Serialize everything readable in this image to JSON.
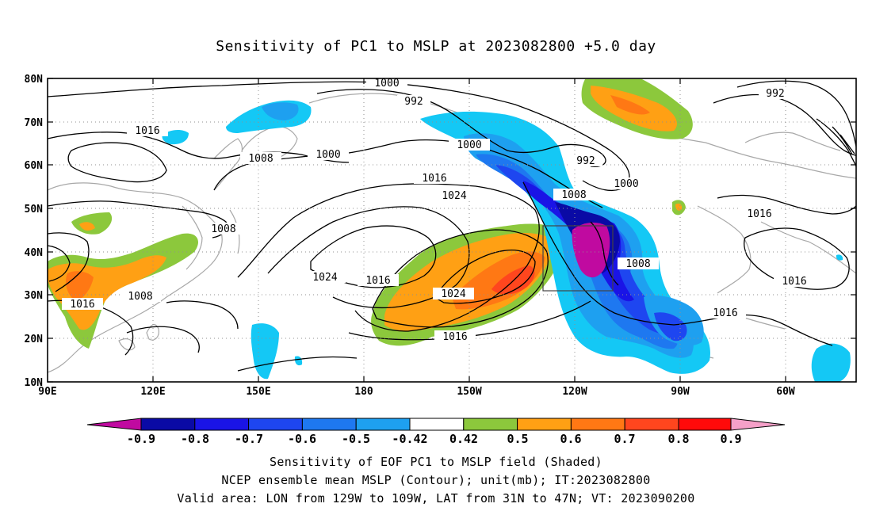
{
  "title": "Sensitivity of PC1 to MSLP at 2023082800 +5.0 day",
  "map": {
    "lat_labels": [
      "80N",
      "70N",
      "60N",
      "50N",
      "40N",
      "30N",
      "20N",
      "10N"
    ],
    "lon_labels": [
      "90E",
      "120E",
      "150E",
      "180",
      "150W",
      "120W",
      "90W",
      "60W"
    ],
    "contour_labels": [
      {
        "text": "1000"
      },
      {
        "text": "992"
      },
      {
        "text": "1016"
      },
      {
        "text": "1008"
      },
      {
        "text": "1000"
      },
      {
        "text": "1000"
      },
      {
        "text": "992"
      },
      {
        "text": "992"
      },
      {
        "text": "1016"
      },
      {
        "text": "1024"
      },
      {
        "text": "1008"
      },
      {
        "text": "1000"
      },
      {
        "text": "1016"
      },
      {
        "text": "1008"
      },
      {
        "text": "1024"
      },
      {
        "text": "1016"
      },
      {
        "text": "1024"
      },
      {
        "text": "1008"
      },
      {
        "text": "1016"
      },
      {
        "text": "1008"
      },
      {
        "text": "1016"
      },
      {
        "text": "1016"
      },
      {
        "text": "1016"
      }
    ]
  },
  "colorbar": {
    "colors": [
      "#c00aa0",
      "#0a0aa5",
      "#1a14e6",
      "#1e46f0",
      "#1e78f0",
      "#1ea0f0",
      "#14c8f5",
      "#ffffff",
      "#8cc83c",
      "#ffa014",
      "#ff7814",
      "#ff461e",
      "#ff0a0a",
      "#f5a0c8"
    ],
    "labels": [
      "-0.9",
      "-0.8",
      "-0.7",
      "-0.6",
      "-0.5",
      "-0.42",
      "0.42",
      "0.5",
      "0.6",
      "0.7",
      "0.8",
      "0.9"
    ]
  },
  "captions": [
    "Sensitivity of EOF PC1 to MSLP field (Shaded)",
    "NCEP ensemble mean MSLP (Contour); unit(mb); IT:2023082800",
    "Valid area: LON from 129W to 109W, LAT from 31N to 47N; VT: 2023090200"
  ]
}
